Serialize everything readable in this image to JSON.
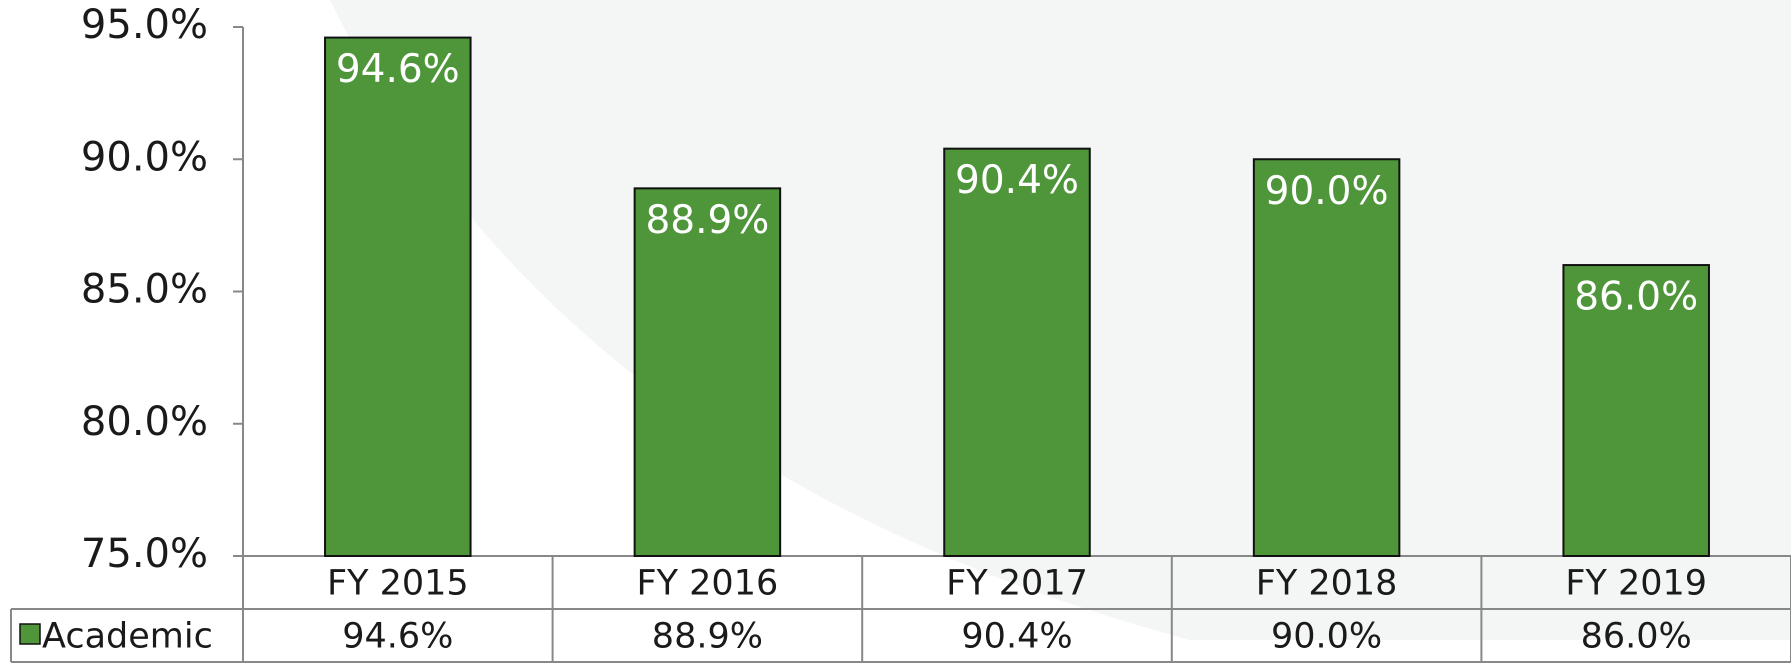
{
  "chart_data": {
    "type": "bar",
    "categories": [
      "FY 2015",
      "FY 2016",
      "FY 2017",
      "FY 2018",
      "FY 2019"
    ],
    "series": [
      {
        "name": "Academic",
        "color": "#4f963b",
        "values": [
          94.6,
          88.9,
          90.4,
          90.0,
          86.0
        ],
        "value_labels": [
          "94.6%",
          "88.9%",
          "90.4%",
          "90.0%",
          "86.0%"
        ]
      }
    ],
    "ylim": [
      75,
      95
    ],
    "yticks": [
      {
        "value": 75,
        "label": "75.0%"
      },
      {
        "value": 80,
        "label": "80.0%"
      },
      {
        "value": 85,
        "label": "85.0%"
      },
      {
        "value": 90,
        "label": "90.0%"
      },
      {
        "value": 95,
        "label": "95.0%"
      }
    ],
    "data_table": true
  }
}
